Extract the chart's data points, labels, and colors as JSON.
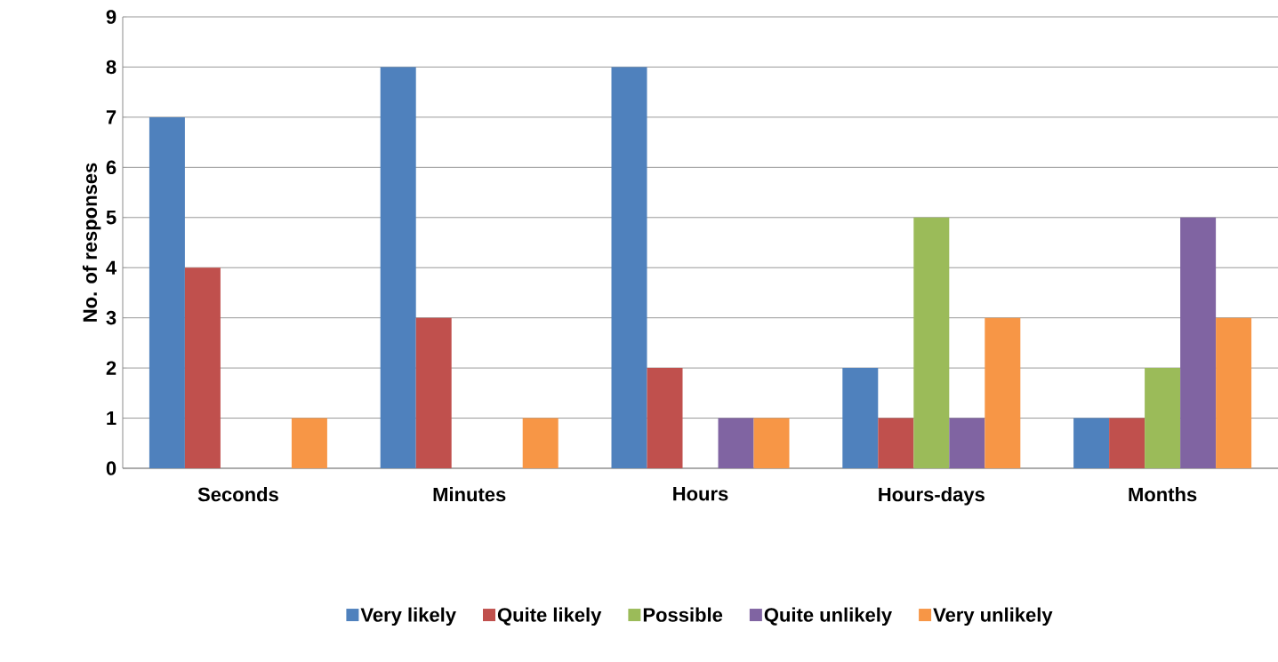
{
  "chart_data": {
    "type": "bar",
    "ylabel": "No. of responses",
    "categories": [
      "Seconds",
      "Minutes",
      "Hours",
      "Hours-days",
      "Months"
    ],
    "series": [
      {
        "name": "Very likely",
        "color": "#4f81bd",
        "values": [
          7,
          8,
          8,
          2,
          1
        ]
      },
      {
        "name": "Quite likely",
        "color": "#c0504d",
        "values": [
          4,
          3,
          2,
          1,
          1
        ]
      },
      {
        "name": "Possible",
        "color": "#9bbb59",
        "values": [
          0,
          0,
          0,
          5,
          2
        ]
      },
      {
        "name": "Quite unlikely",
        "color": "#8064a2",
        "values": [
          0,
          0,
          1,
          1,
          5
        ]
      },
      {
        "name": "Very unlikely",
        "color": "#f79646",
        "values": [
          1,
          1,
          1,
          3,
          3
        ]
      }
    ],
    "ylim": [
      0,
      9
    ],
    "yticks": [
      0,
      1,
      2,
      3,
      4,
      5,
      6,
      7,
      8,
      9
    ],
    "grid": "y",
    "legend": "bottom"
  }
}
